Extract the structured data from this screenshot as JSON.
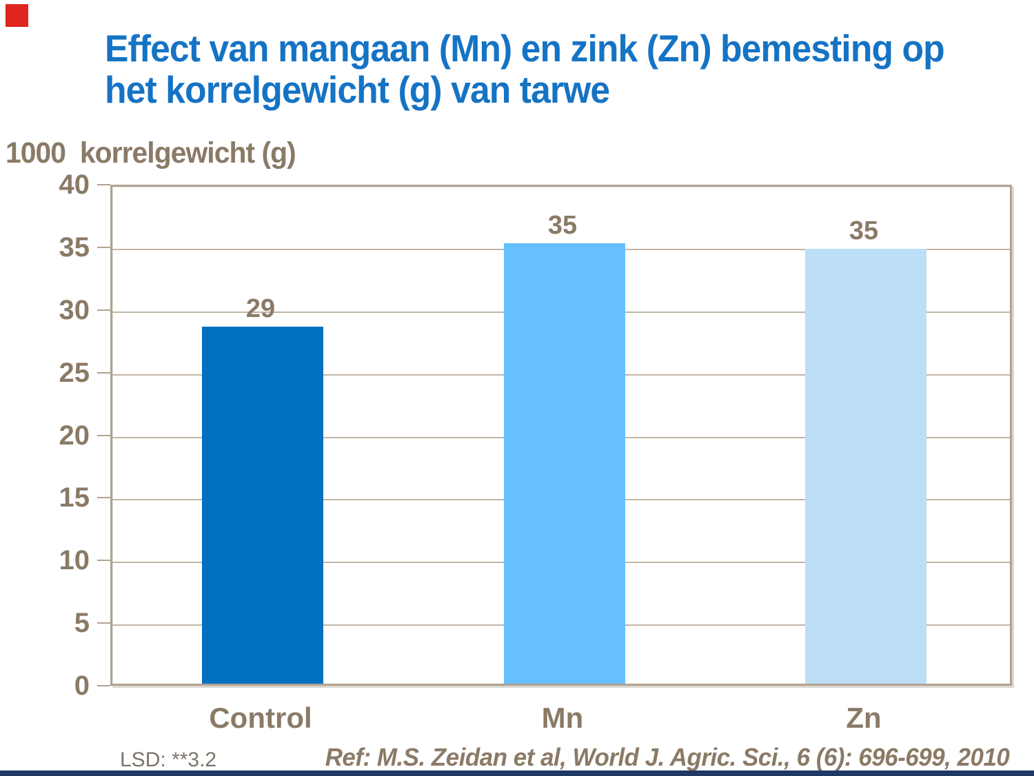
{
  "slide": {
    "title_line1": "Effect van mangaan (Mn) en zink (Zn) bemesting op",
    "title_line2": "het korrelgewicht (g) van tarwe",
    "footnote_lsd": "LSD: **3.2",
    "reference": "Ref: M.S. Zeidan et al, World J. Agric. Sci., 6 (6): 696-699, 2010"
  },
  "chart_data": {
    "type": "bar",
    "title": "Effect van mangaan (Mn) en zink (Zn) bemesting op het korrelgewicht (g) van tarwe",
    "axis_title": "1000  korrelgewicht (g)",
    "categories": [
      "Control",
      "Mn",
      "Zn"
    ],
    "values": [
      29,
      35,
      35
    ],
    "plotted_values": [
      28.5,
      35.15,
      34.7
    ],
    "data_labels": [
      "29",
      "35",
      "35"
    ],
    "bar_colors": [
      "#0070C0",
      "#66BFFF",
      "#BDDEF7"
    ],
    "ylim": [
      0,
      40
    ],
    "ytick_interval": 5,
    "yticks": [
      "40",
      "35",
      "30",
      "25",
      "20",
      "15",
      "10",
      "5",
      "0"
    ],
    "grid": "horizontal",
    "legend": "none",
    "xlabel": "",
    "ylabel": "1000 korrelgewicht (g)"
  },
  "colors": {
    "title_blue": "#1573C4",
    "axis_text_brown": "#8A7A66",
    "grid_tan": "#C0B5A6",
    "plot_border_tan": "#B0A392",
    "bottom_bar_navy": "#1F3864",
    "corner_marker_red": "#E0241E",
    "bar_control": "#0070C0",
    "bar_mn": "#66BFFF",
    "bar_zn": "#BDDEF7"
  }
}
